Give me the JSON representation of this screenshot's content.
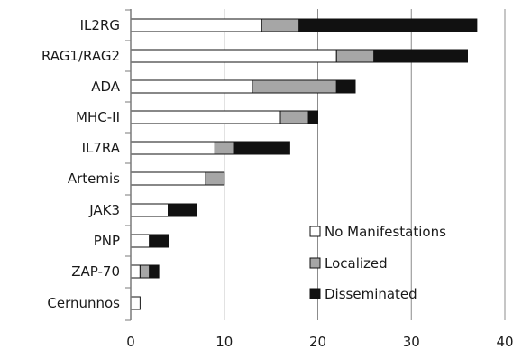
{
  "chart_data": {
    "type": "bar",
    "orientation": "horizontal",
    "stacked": true,
    "categories": [
      "IL2RG",
      "RAG1/RAG2",
      "ADA",
      "MHC-II",
      "IL7RA",
      "Artemis",
      "JAK3",
      "PNP",
      "ZAP-70",
      "Cernunnos"
    ],
    "series": [
      {
        "name": "No Manifestations",
        "color": "#ffffff",
        "values": [
          14,
          22,
          13,
          16,
          9,
          8,
          4,
          2,
          1,
          1
        ]
      },
      {
        "name": "Localized",
        "color": "#a6a6a6",
        "values": [
          4,
          4,
          9,
          3,
          2,
          2,
          0,
          0,
          1,
          0
        ]
      },
      {
        "name": "Disseminated",
        "color": "#111111",
        "values": [
          19,
          10,
          2,
          1,
          6,
          0,
          3,
          2,
          1,
          0
        ]
      }
    ],
    "xlim": [
      0,
      40
    ],
    "xticks": [
      "0",
      "10",
      "20",
      "30",
      "40"
    ],
    "grid": "vertical",
    "legend": "bottom-right"
  }
}
